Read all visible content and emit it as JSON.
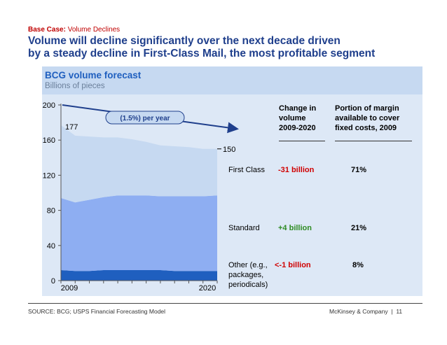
{
  "header": {
    "tag_bold": "Base Case:",
    "tag_rest": "Volume Declines",
    "headline_line1": "Volume will decline significantly over the next decade driven",
    "headline_line2": "by a steady decline in First-Class Mail, the most profitable segment"
  },
  "panel": {
    "title": "BCG volume forecast",
    "subtitle": "Billions of pieces"
  },
  "chart_data": {
    "type": "area",
    "stacked": true,
    "x": [
      2009,
      2010,
      2011,
      2012,
      2013,
      2014,
      2015,
      2016,
      2017,
      2018,
      2019,
      2020
    ],
    "x_tick_labels": [
      "2009",
      "2020"
    ],
    "series": [
      {
        "name": "Other (e.g., packages, periodicals)",
        "color": "#1f5fbf",
        "values": [
          12,
          11,
          11,
          12,
          12,
          12,
          12,
          12,
          11,
          11,
          11,
          11
        ]
      },
      {
        "name": "Standard",
        "color": "#8eaef2",
        "values": [
          82,
          78,
          81,
          83,
          85,
          85,
          85,
          84,
          85,
          85,
          85,
          86
        ]
      },
      {
        "name": "First Class",
        "color": "#c6d9f1",
        "values": [
          83,
          76,
          72,
          68,
          66,
          64,
          61,
          58,
          57,
          56,
          54,
          53
        ]
      }
    ],
    "ylim": [
      0,
      200
    ],
    "y_ticks": [
      0,
      40,
      80,
      120,
      160,
      200
    ],
    "start_label": "177",
    "end_label": "150",
    "trend_label": "(1.5%) per year"
  },
  "table": {
    "col1_header": [
      "Change in",
      "volume",
      "2009-2020"
    ],
    "col2_header": [
      "Portion of margin",
      "available to cover",
      "fixed costs, 2009"
    ],
    "rows": [
      {
        "label": [
          "First Class"
        ],
        "change": "-31 billion",
        "change_color": "#d00000",
        "margin": "71%"
      },
      {
        "label": [
          "Standard"
        ],
        "change": "+4 billion",
        "change_color": "#2e8b22",
        "margin": "21%"
      },
      {
        "label": [
          "Other (e.g.,",
          "packages,",
          "periodicals)"
        ],
        "change": "<-1 billion",
        "change_color": "#d00000",
        "margin": "8%"
      }
    ]
  },
  "footer": {
    "source": "SOURCE: BCG; USPS Financial Forecasting Model",
    "brand": "McKinsey & Company",
    "separator": "|",
    "page": "11"
  }
}
